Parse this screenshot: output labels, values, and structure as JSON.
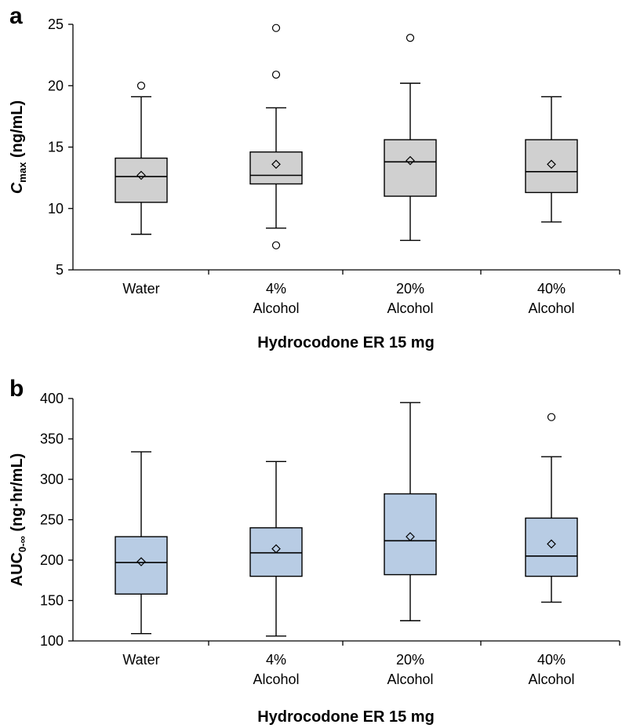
{
  "chart_data": [
    {
      "type": "box",
      "panel": "a",
      "ylabel_main": "C",
      "ylabel_sub": "max",
      "ylabel_unit": " (ng/mL)",
      "xlabel": "Hydrocodone ER 15 mg",
      "ylim": [
        5,
        25
      ],
      "yticks": [
        5,
        10,
        15,
        20,
        25
      ],
      "categories": [
        [
          "Water"
        ],
        [
          "4%",
          "Alcohol"
        ],
        [
          "20%",
          "Alcohol"
        ],
        [
          "40%",
          "Alcohol"
        ]
      ],
      "box_color": "#d0d0d0",
      "boxes": [
        {
          "whisker_low": 7.9,
          "q1": 10.5,
          "median": 12.6,
          "q3": 14.1,
          "whisker_high": 19.1,
          "mean": 12.7,
          "outliers": [
            20.0
          ]
        },
        {
          "whisker_low": 8.4,
          "q1": 12.0,
          "median": 12.7,
          "q3": 14.6,
          "whisker_high": 18.2,
          "mean": 13.6,
          "outliers": [
            24.7,
            20.9,
            7.0
          ]
        },
        {
          "whisker_low": 7.4,
          "q1": 11.0,
          "median": 13.8,
          "q3": 15.6,
          "whisker_high": 20.2,
          "mean": 13.9,
          "outliers": [
            23.9
          ]
        },
        {
          "whisker_low": 8.9,
          "q1": 11.3,
          "median": 13.0,
          "q3": 15.6,
          "whisker_high": 19.1,
          "mean": 13.6,
          "outliers": []
        }
      ]
    },
    {
      "type": "box",
      "panel": "b",
      "ylabel_main": "AUC",
      "ylabel_sub": "0-∞",
      "ylabel_unit": " (ng·hr/mL)",
      "xlabel": "Hydrocodone ER 15 mg",
      "ylim": [
        100,
        400
      ],
      "yticks": [
        100,
        150,
        200,
        250,
        300,
        350,
        400
      ],
      "categories": [
        [
          "Water"
        ],
        [
          "4%",
          "Alcohol"
        ],
        [
          "20%",
          "Alcohol"
        ],
        [
          "40%",
          "Alcohol"
        ]
      ],
      "box_color": "#b8cce4",
      "boxes": [
        {
          "whisker_low": 109,
          "q1": 158,
          "median": 197,
          "q3": 229,
          "whisker_high": 334,
          "mean": 198,
          "outliers": []
        },
        {
          "whisker_low": 106,
          "q1": 180,
          "median": 209,
          "q3": 240,
          "whisker_high": 322,
          "mean": 214,
          "outliers": []
        },
        {
          "whisker_low": 125,
          "q1": 182,
          "median": 224,
          "q3": 282,
          "whisker_high": 395,
          "mean": 229,
          "outliers": []
        },
        {
          "whisker_low": 148,
          "q1": 180,
          "median": 205,
          "q3": 252,
          "whisker_high": 328,
          "mean": 220,
          "outliers": [
            377
          ]
        }
      ]
    }
  ]
}
